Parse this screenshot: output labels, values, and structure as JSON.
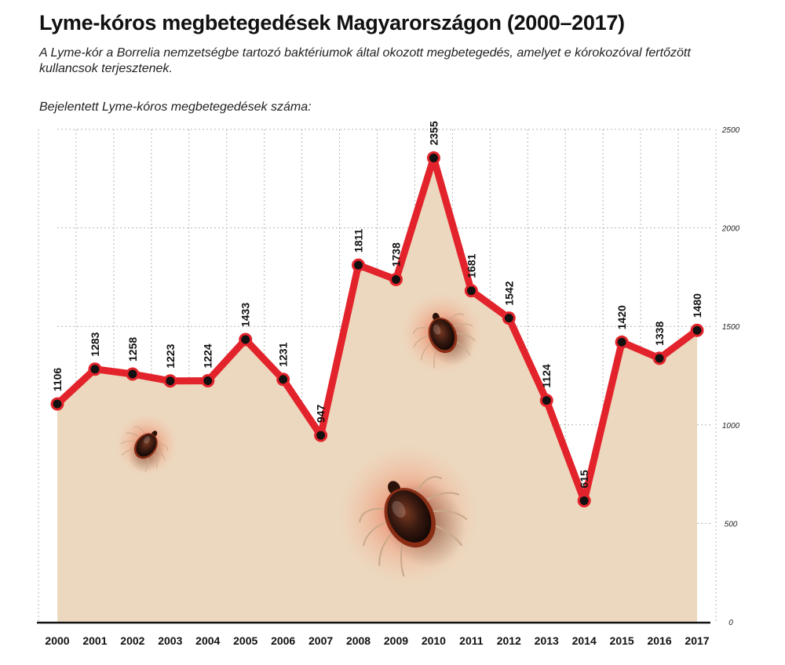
{
  "title": "Lyme-kóros megbetegedések Magyarországon (2000–2017)",
  "subtitle": "A Lyme-kór a Borrelia nemzetségbe tartozó baktériumok által okozott megbetegedés, amelyet e kórokozóval fertőzött kullancsok terjesztenek.",
  "chart_caption": "Bejelentett Lyme-kóros megbetegedések száma:",
  "chart_data": {
    "type": "area",
    "title": "Lyme-kóros megbetegedések Magyarországon (2000–2017)",
    "ylabel": "Bejelentett Lyme-kóros megbetegedések száma:",
    "categories": [
      "2000",
      "2001",
      "2002",
      "2003",
      "2004",
      "2005",
      "2006",
      "2007",
      "2008",
      "2009",
      "2010",
      "2011",
      "2012",
      "2013",
      "2014",
      "2015",
      "2016",
      "2017"
    ],
    "values": [
      1106,
      1283,
      1258,
      1223,
      1224,
      1433,
      1231,
      947,
      1811,
      1738,
      2355,
      1681,
      1542,
      1124,
      615,
      1420,
      1338,
      1480
    ],
    "ylim": [
      0,
      2500
    ],
    "yticks": [
      0,
      500,
      1000,
      1500,
      2000,
      2500
    ],
    "grid": true,
    "y_axis_side": "right",
    "colors": {
      "line": "#e3232b",
      "marker": "#111111",
      "fill": "#ecd8bf",
      "grid": "#b5b5b5"
    },
    "decorations": [
      "tick-icon",
      "tick-icon",
      "tick-icon"
    ]
  }
}
